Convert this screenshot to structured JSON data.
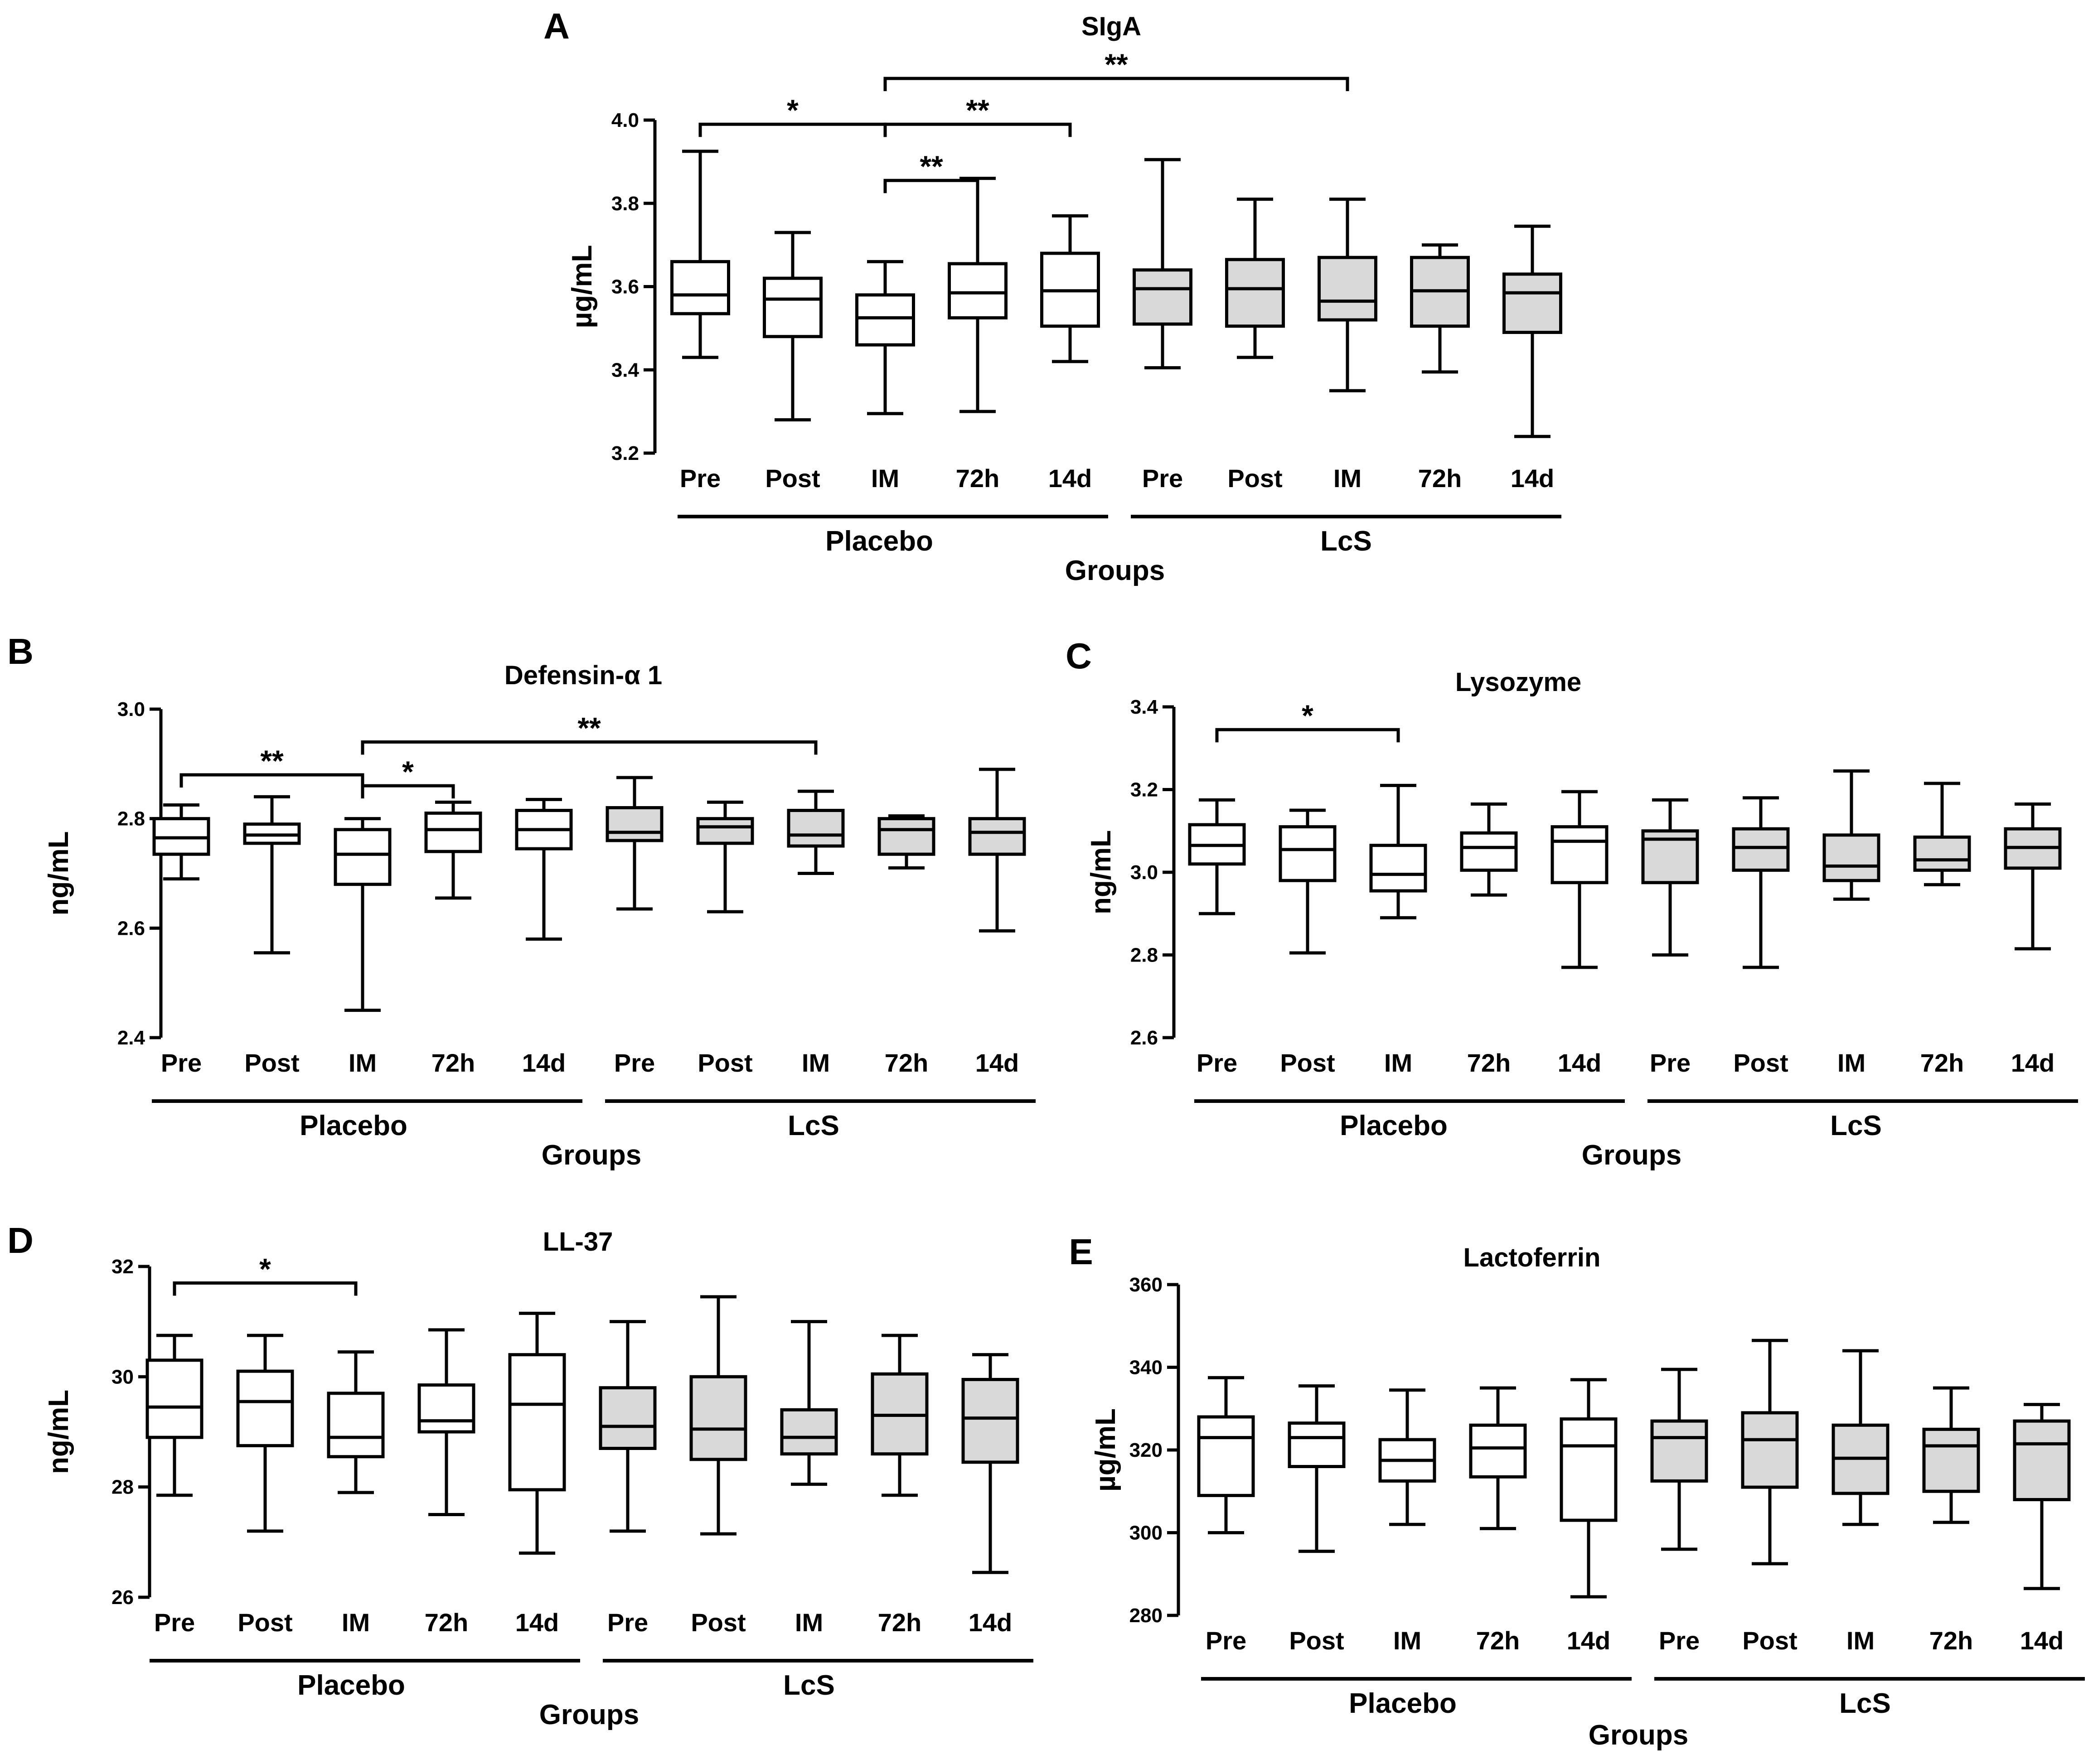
{
  "figure": {
    "colors": {
      "placebo_fill": "#ffffff",
      "lcs_fill": "#d9d9d9",
      "stroke": "#000000"
    }
  },
  "chart_data": [
    {
      "id": "A",
      "type": "boxplot",
      "panel_label": "A",
      "title": "SIgA",
      "ylabel": "µg/mL",
      "xlabel": "Groups",
      "ylim": [
        3.2,
        4.0
      ],
      "yticks": [
        3.2,
        3.4,
        3.6,
        3.8,
        4.0
      ],
      "ytick_labels": [
        "3.2",
        "3.4",
        "3.6",
        "3.8",
        "4.0"
      ],
      "categories": [
        "Pre",
        "Post",
        "IM",
        "72h",
        "14d",
        "Pre",
        "Post",
        "IM",
        "72h",
        "14d"
      ],
      "groups": [
        {
          "label": "Placebo",
          "range": [
            0,
            4
          ],
          "fill": "placebo"
        },
        {
          "label": "LcS",
          "range": [
            5,
            9
          ],
          "fill": "lcs"
        }
      ],
      "series": [
        {
          "name": "Placebo",
          "stats": [
            {
              "min": 3.43,
              "q1": 3.535,
              "median": 3.58,
              "q3": 3.66,
              "max": 3.925
            },
            {
              "min": 3.28,
              "q1": 3.48,
              "median": 3.57,
              "q3": 3.62,
              "max": 3.73
            },
            {
              "min": 3.295,
              "q1": 3.46,
              "median": 3.525,
              "q3": 3.58,
              "max": 3.66
            },
            {
              "min": 3.3,
              "q1": 3.525,
              "median": 3.585,
              "q3": 3.655,
              "max": 3.86
            },
            {
              "min": 3.42,
              "q1": 3.505,
              "median": 3.59,
              "q3": 3.68,
              "max": 3.77
            }
          ]
        },
        {
          "name": "LcS",
          "stats": [
            {
              "min": 3.405,
              "q1": 3.51,
              "median": 3.595,
              "q3": 3.64,
              "max": 3.905
            },
            {
              "min": 3.43,
              "q1": 3.505,
              "median": 3.595,
              "q3": 3.665,
              "max": 3.81
            },
            {
              "min": 3.35,
              "q1": 3.52,
              "median": 3.565,
              "q3": 3.67,
              "max": 3.81
            },
            {
              "min": 3.395,
              "q1": 3.505,
              "median": 3.59,
              "q3": 3.67,
              "max": 3.7
            },
            {
              "min": 3.24,
              "q1": 3.49,
              "median": 3.585,
              "q3": 3.63,
              "max": 3.745
            }
          ]
        }
      ],
      "significance": [
        {
          "from": 0,
          "to": 2,
          "label": "*",
          "level": 3.99
        },
        {
          "from": 2,
          "to": 3,
          "label": "**",
          "level": 3.855
        },
        {
          "from": 2,
          "to": 4,
          "label": "**",
          "level": 3.99
        },
        {
          "from": 2,
          "to": 7,
          "label": "**",
          "level": 4.1
        }
      ]
    },
    {
      "id": "B",
      "type": "boxplot",
      "panel_label": "B",
      "title": "Defensin-α 1",
      "ylabel": "ng/mL",
      "xlabel": "Groups",
      "ylim": [
        2.4,
        3.0
      ],
      "yticks": [
        2.4,
        2.6,
        2.8,
        3.0
      ],
      "ytick_labels": [
        "2.4",
        "2.6",
        "2.8",
        "3.0"
      ],
      "categories": [
        "Pre",
        "Post",
        "IM",
        "72h",
        "14d",
        "Pre",
        "Post",
        "IM",
        "72h",
        "14d"
      ],
      "groups": [
        {
          "label": "Placebo",
          "range": [
            0,
            4
          ],
          "fill": "placebo"
        },
        {
          "label": "LcS",
          "range": [
            5,
            9
          ],
          "fill": "lcs"
        }
      ],
      "series": [
        {
          "name": "Placebo",
          "stats": [
            {
              "min": 2.69,
              "q1": 2.735,
              "median": 2.765,
              "q3": 2.8,
              "max": 2.825
            },
            {
              "min": 2.555,
              "q1": 2.755,
              "median": 2.77,
              "q3": 2.79,
              "max": 2.84
            },
            {
              "min": 2.45,
              "q1": 2.68,
              "median": 2.735,
              "q3": 2.78,
              "max": 2.8
            },
            {
              "min": 2.655,
              "q1": 2.74,
              "median": 2.78,
              "q3": 2.81,
              "max": 2.83
            },
            {
              "min": 2.58,
              "q1": 2.745,
              "median": 2.78,
              "q3": 2.815,
              "max": 2.835
            }
          ]
        },
        {
          "name": "LcS",
          "stats": [
            {
              "min": 2.635,
              "q1": 2.76,
              "median": 2.775,
              "q3": 2.82,
              "max": 2.875
            },
            {
              "min": 2.63,
              "q1": 2.755,
              "median": 2.785,
              "q3": 2.8,
              "max": 2.83
            },
            {
              "min": 2.7,
              "q1": 2.75,
              "median": 2.77,
              "q3": 2.815,
              "max": 2.85
            },
            {
              "min": 2.71,
              "q1": 2.735,
              "median": 2.78,
              "q3": 2.8,
              "max": 2.805
            },
            {
              "min": 2.595,
              "q1": 2.735,
              "median": 2.775,
              "q3": 2.8,
              "max": 2.89
            }
          ]
        }
      ],
      "significance": [
        {
          "from": 0,
          "to": 2,
          "label": "**",
          "level": 2.88
        },
        {
          "from": 2,
          "to": 3,
          "label": "*",
          "level": 2.86
        },
        {
          "from": 2,
          "to": 7,
          "label": "**",
          "level": 2.94
        }
      ]
    },
    {
      "id": "C",
      "type": "boxplot",
      "panel_label": "C",
      "title": "Lysozyme",
      "ylabel": "ng/mL",
      "xlabel": "Groups",
      "ylim": [
        2.6,
        3.4
      ],
      "yticks": [
        2.6,
        2.8,
        3.0,
        3.2,
        3.4
      ],
      "ytick_labels": [
        "2.6",
        "2.8",
        "3.0",
        "3.2",
        "3.4"
      ],
      "categories": [
        "Pre",
        "Post",
        "IM",
        "72h",
        "14d",
        "Pre",
        "Post",
        "IM",
        "72h",
        "14d"
      ],
      "groups": [
        {
          "label": "Placebo",
          "range": [
            0,
            4
          ],
          "fill": "placebo"
        },
        {
          "label": "LcS",
          "range": [
            5,
            9
          ],
          "fill": "lcs"
        }
      ],
      "series": [
        {
          "name": "Placebo",
          "stats": [
            {
              "min": 2.9,
              "q1": 3.02,
              "median": 3.065,
              "q3": 3.115,
              "max": 3.175
            },
            {
              "min": 2.805,
              "q1": 2.98,
              "median": 3.055,
              "q3": 3.11,
              "max": 3.15
            },
            {
              "min": 2.89,
              "q1": 2.955,
              "median": 2.995,
              "q3": 3.065,
              "max": 3.21
            },
            {
              "min": 2.945,
              "q1": 3.005,
              "median": 3.06,
              "q3": 3.095,
              "max": 3.165
            },
            {
              "min": 2.77,
              "q1": 2.975,
              "median": 3.075,
              "q3": 3.11,
              "max": 3.195
            }
          ]
        },
        {
          "name": "LcS",
          "stats": [
            {
              "min": 2.8,
              "q1": 2.975,
              "median": 3.08,
              "q3": 3.1,
              "max": 3.175
            },
            {
              "min": 2.77,
              "q1": 3.005,
              "median": 3.06,
              "q3": 3.105,
              "max": 3.18
            },
            {
              "min": 2.935,
              "q1": 2.98,
              "median": 3.015,
              "q3": 3.09,
              "max": 3.245
            },
            {
              "min": 2.97,
              "q1": 3.005,
              "median": 3.03,
              "q3": 3.085,
              "max": 3.215
            },
            {
              "min": 2.815,
              "q1": 3.01,
              "median": 3.06,
              "q3": 3.105,
              "max": 3.165
            }
          ]
        }
      ],
      "significance": [
        {
          "from": 0,
          "to": 2,
          "label": "*",
          "level": 3.345
        }
      ]
    },
    {
      "id": "D",
      "type": "boxplot",
      "panel_label": "D",
      "title": "LL-37",
      "ylabel": "ng/mL",
      "xlabel": "Groups",
      "ylim": [
        26,
        32
      ],
      "yticks": [
        26,
        28,
        30,
        32
      ],
      "ytick_labels": [
        "26",
        "28",
        "30",
        "32"
      ],
      "categories": [
        "Pre",
        "Post",
        "IM",
        "72h",
        "14d",
        "Pre",
        "Post",
        "IM",
        "72h",
        "14d"
      ],
      "groups": [
        {
          "label": "Placebo",
          "range": [
            0,
            4
          ],
          "fill": "placebo"
        },
        {
          "label": "LcS",
          "range": [
            5,
            9
          ],
          "fill": "lcs"
        }
      ],
      "series": [
        {
          "name": "Placebo",
          "stats": [
            {
              "min": 27.85,
              "q1": 28.9,
              "median": 29.45,
              "q3": 30.3,
              "max": 30.75
            },
            {
              "min": 27.2,
              "q1": 28.75,
              "median": 29.55,
              "q3": 30.1,
              "max": 30.75
            },
            {
              "min": 27.9,
              "q1": 28.55,
              "median": 28.9,
              "q3": 29.7,
              "max": 30.45
            },
            {
              "min": 27.5,
              "q1": 29.0,
              "median": 29.2,
              "q3": 29.85,
              "max": 30.85
            },
            {
              "min": 26.8,
              "q1": 27.95,
              "median": 29.5,
              "q3": 30.4,
              "max": 31.15
            }
          ]
        },
        {
          "name": "LcS",
          "stats": [
            {
              "min": 27.2,
              "q1": 28.7,
              "median": 29.1,
              "q3": 29.8,
              "max": 31.0
            },
            {
              "min": 27.15,
              "q1": 28.5,
              "median": 29.05,
              "q3": 30.0,
              "max": 31.45
            },
            {
              "min": 28.05,
              "q1": 28.6,
              "median": 28.9,
              "q3": 29.4,
              "max": 31.0
            },
            {
              "min": 27.85,
              "q1": 28.6,
              "median": 29.3,
              "q3": 30.05,
              "max": 30.75
            },
            {
              "min": 26.45,
              "q1": 28.45,
              "median": 29.25,
              "q3": 29.95,
              "max": 30.4
            }
          ]
        }
      ],
      "significance": [
        {
          "from": 0,
          "to": 2,
          "label": "*",
          "level": 31.7
        }
      ]
    },
    {
      "id": "E",
      "type": "boxplot",
      "panel_label": "E",
      "title": "Lactoferrin",
      "ylabel": "µg/mL",
      "xlabel": "Groups",
      "ylim": [
        280,
        360
      ],
      "yticks": [
        280,
        300,
        320,
        340,
        360
      ],
      "ytick_labels": [
        "280",
        "300",
        "320",
        "340",
        "360"
      ],
      "categories": [
        "Pre",
        "Post",
        "IM",
        "72h",
        "14d",
        "Pre",
        "Post",
        "IM",
        "72h",
        "14d"
      ],
      "groups": [
        {
          "label": "Placebo",
          "range": [
            0,
            4
          ],
          "fill": "placebo"
        },
        {
          "label": "LcS",
          "range": [
            5,
            9
          ],
          "fill": "lcs"
        }
      ],
      "series": [
        {
          "name": "Placebo",
          "stats": [
            {
              "min": 300,
              "q1": 309,
              "median": 323,
              "q3": 328,
              "max": 337.5
            },
            {
              "min": 295.5,
              "q1": 316,
              "median": 323,
              "q3": 326.5,
              "max": 335.5
            },
            {
              "min": 302,
              "q1": 312.5,
              "median": 317.5,
              "q3": 322.5,
              "max": 334.5
            },
            {
              "min": 301,
              "q1": 313.5,
              "median": 320.5,
              "q3": 326,
              "max": 335
            },
            {
              "min": 284.5,
              "q1": 303,
              "median": 321,
              "q3": 327.5,
              "max": 337
            }
          ]
        },
        {
          "name": "LcS",
          "stats": [
            {
              "min": 296,
              "q1": 312.5,
              "median": 323,
              "q3": 327,
              "max": 339.5
            },
            {
              "min": 292.5,
              "q1": 311,
              "median": 322.5,
              "q3": 329,
              "max": 346.5
            },
            {
              "min": 302,
              "q1": 309.5,
              "median": 318,
              "q3": 326,
              "max": 344
            },
            {
              "min": 302.5,
              "q1": 310,
              "median": 321,
              "q3": 325,
              "max": 335
            },
            {
              "min": 286.5,
              "q1": 308,
              "median": 321.5,
              "q3": 327,
              "max": 331
            }
          ]
        }
      ],
      "significance": []
    }
  ]
}
